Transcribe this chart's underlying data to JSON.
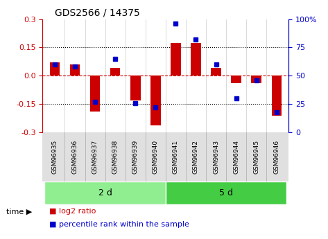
{
  "title": "GDS2566 / 14375",
  "samples": [
    "GSM96935",
    "GSM96936",
    "GSM96937",
    "GSM96938",
    "GSM96939",
    "GSM96940",
    "GSM96941",
    "GSM96942",
    "GSM96943",
    "GSM96944",
    "GSM96945",
    "GSM96946"
  ],
  "log2_ratio": [
    0.07,
    0.06,
    -0.19,
    0.04,
    -0.13,
    -0.265,
    0.175,
    0.175,
    0.04,
    -0.04,
    -0.04,
    -0.21
  ],
  "percentile_rank": [
    60,
    58,
    27,
    65,
    26,
    22,
    96,
    82,
    60,
    30,
    46,
    18
  ],
  "groups": [
    {
      "label": "2 d",
      "start": 0,
      "end": 6,
      "color": "#90ee90"
    },
    {
      "label": "5 d",
      "start": 6,
      "end": 12,
      "color": "#44cc44"
    }
  ],
  "ylim": [
    -0.3,
    0.3
  ],
  "yticks_left": [
    -0.3,
    -0.15,
    0.0,
    0.15,
    0.3
  ],
  "yticks_right": [
    0,
    25,
    50,
    75,
    100
  ],
  "bar_color": "#cc0000",
  "point_color": "#0000cc",
  "bg_color": "#ffffff",
  "plot_bg": "#ffffff",
  "grid_color": "#000000",
  "time_label": "time",
  "legend_items": [
    {
      "color": "#cc0000",
      "label": "log2 ratio"
    },
    {
      "color": "#0000cc",
      "label": "percentile rank within the sample"
    }
  ],
  "bar_width": 0.5
}
